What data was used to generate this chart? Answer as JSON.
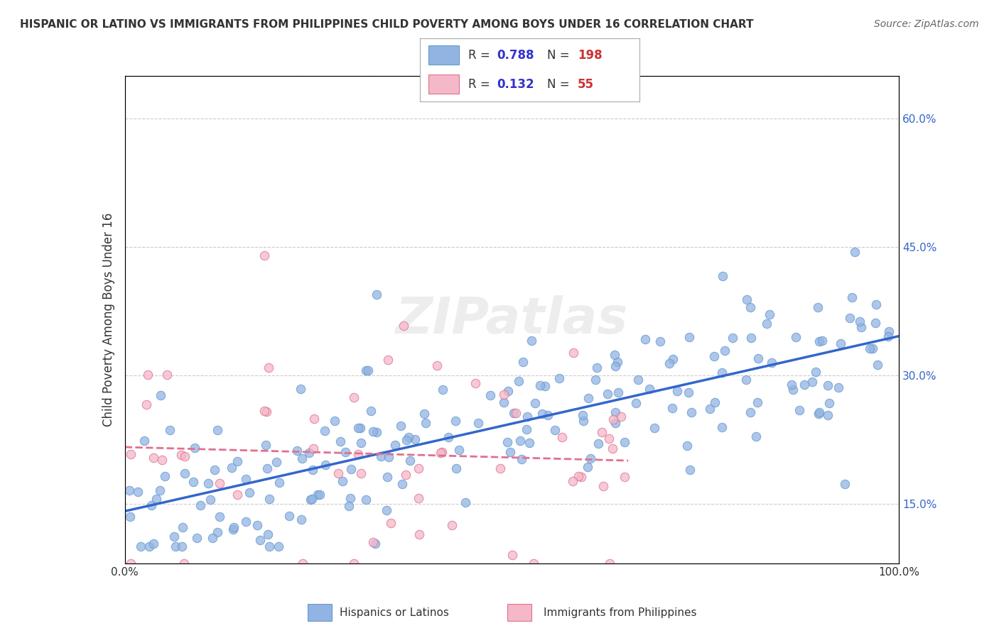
{
  "title": "HISPANIC OR LATINO VS IMMIGRANTS FROM PHILIPPINES CHILD POVERTY AMONG BOYS UNDER 16 CORRELATION CHART",
  "source": "Source: ZipAtlas.com",
  "ylabel": "Child Poverty Among Boys Under 16",
  "xlabel": "",
  "series": [
    {
      "name": "Hispanics or Latinos",
      "color": "#92b4e3",
      "border_color": "#6699cc",
      "R": 0.788,
      "N": 198,
      "trend_color": "#3366cc",
      "trend_dash": "solid",
      "x": [
        0.8,
        1.5,
        2.0,
        2.5,
        3.0,
        3.5,
        4.0,
        4.5,
        5.0,
        5.5,
        6.0,
        6.5,
        7.0,
        7.5,
        8.0,
        8.5,
        9.0,
        9.5,
        10.0,
        10.5,
        11.0,
        11.5,
        12.0,
        13.0,
        14.0,
        15.0,
        16.0,
        17.0,
        18.0,
        19.0,
        20.0,
        21.0,
        22.0,
        23.0,
        24.0,
        25.0,
        26.0,
        27.0,
        28.0,
        29.0,
        30.0,
        31.0,
        32.0,
        33.0,
        34.0,
        35.0,
        36.0,
        37.0,
        38.0,
        39.0,
        40.0,
        41.0,
        42.0,
        43.0,
        44.0,
        45.0,
        46.0,
        47.0,
        48.0,
        49.0,
        50.0,
        51.0,
        52.0,
        53.0,
        54.0,
        55.0,
        56.0,
        57.0,
        58.0,
        59.0,
        60.0,
        62.0,
        64.0,
        65.0,
        66.0,
        67.0,
        68.0,
        70.0,
        71.0,
        72.0,
        73.0,
        74.0,
        75.0,
        76.0,
        77.0,
        78.0,
        79.0,
        80.0,
        82.0,
        83.0,
        84.0,
        85.0,
        86.0,
        87.0,
        88.0,
        89.0,
        90.0,
        91.0,
        92.0,
        93.0,
        94.0,
        95.0,
        96.0,
        97.0,
        98.0,
        99.0
      ],
      "y": [
        13.0,
        14.0,
        15.0,
        18.0,
        16.0,
        17.0,
        16.0,
        16.5,
        15.0,
        14.0,
        16.0,
        17.5,
        18.0,
        17.0,
        19.0,
        18.0,
        20.0,
        19.5,
        20.0,
        19.0,
        21.0,
        20.0,
        22.0,
        21.0,
        22.5,
        23.0,
        22.0,
        21.5,
        23.0,
        22.0,
        24.0,
        23.5,
        24.5,
        23.0,
        25.0,
        24.0,
        25.5,
        25.0,
        26.0,
        26.5,
        25.0,
        27.0,
        26.0,
        27.5,
        27.0,
        28.0,
        27.0,
        26.5,
        28.0,
        28.5,
        27.0,
        29.0,
        28.0,
        30.0,
        29.0,
        28.5,
        30.0,
        29.5,
        31.0,
        30.0,
        29.5,
        31.0,
        30.5,
        31.5,
        30.0,
        32.0,
        31.0,
        33.0,
        32.0,
        31.5,
        33.0,
        32.0,
        34.0,
        35.0,
        33.0,
        34.0,
        35.0,
        33.5,
        36.0,
        34.5,
        35.5,
        36.5,
        35.0,
        37.0,
        36.0,
        37.5,
        36.5,
        38.0,
        37.0,
        38.5,
        39.0,
        38.0,
        40.0,
        39.5,
        41.0,
        40.0,
        39.0,
        41.5,
        40.5,
        42.0,
        41.0,
        43.0,
        42.0,
        44.0,
        43.0,
        44.5
      ]
    },
    {
      "name": "Immigrants from Philippines",
      "color": "#f4b8c8",
      "border_color": "#e07090",
      "R": 0.132,
      "N": 55,
      "trend_color": "#e07090",
      "trend_dash": "dashed",
      "x": [
        1.0,
        2.0,
        3.0,
        4.0,
        5.0,
        6.0,
        7.0,
        8.0,
        9.0,
        10.0,
        11.0,
        12.0,
        13.0,
        14.0,
        15.0,
        17.0,
        18.0,
        19.0,
        20.0,
        22.0,
        24.0,
        25.0,
        27.0,
        30.0,
        32.0,
        35.0,
        38.0,
        42.0,
        45.0,
        48.0,
        50.0,
        55.0,
        60.0
      ],
      "y": [
        16.0,
        13.5,
        12.0,
        11.5,
        15.0,
        14.5,
        13.0,
        12.5,
        40.0,
        44.0,
        14.0,
        13.5,
        14.5,
        15.0,
        14.0,
        18.0,
        31.0,
        32.0,
        16.0,
        18.0,
        25.0,
        27.0,
        17.0,
        20.0,
        22.0,
        26.0,
        22.0,
        19.0,
        21.0,
        24.0,
        22.0,
        23.0,
        24.0
      ]
    }
  ],
  "xlim": [
    0,
    100
  ],
  "ylim": [
    8,
    65
  ],
  "yticks": [
    15.0,
    30.0,
    45.0,
    60.0
  ],
  "ytick_labels": [
    "15.0%",
    "30.0%",
    "45.0%",
    "60.0%"
  ],
  "xtick_labels": [
    "0.0%",
    "100.0%"
  ],
  "grid_color": "#cccccc",
  "watermark": "ZIPatlas",
  "bg_color": "#ffffff",
  "legend_R_color": "#3333cc",
  "legend_N_color": "#cc3333"
}
